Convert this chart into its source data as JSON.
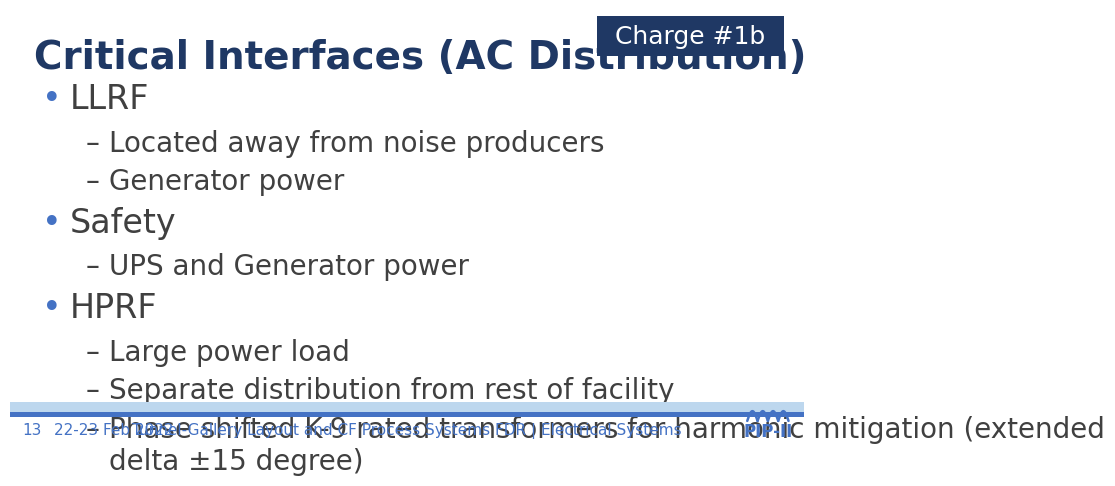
{
  "title": "Critical Interfaces (AC Distribution)",
  "title_color": "#1F3864",
  "title_fontsize": 28,
  "charge_label": "Charge #1b",
  "charge_bg_color": "#1F3864",
  "charge_text_color": "#FFFFFF",
  "charge_fontsize": 18,
  "bg_color": "#FFFFFF",
  "bullet_color": "#4472C4",
  "bullet_items": [
    {
      "level": 1,
      "text": "LLRF"
    },
    {
      "level": 2,
      "text": "Located away from noise producers"
    },
    {
      "level": 2,
      "text": "Generator power"
    },
    {
      "level": 1,
      "text": "Safety"
    },
    {
      "level": 2,
      "text": "UPS and Generator power"
    },
    {
      "level": 1,
      "text": "HPRF"
    },
    {
      "level": 2,
      "text": "Large power load"
    },
    {
      "level": 2,
      "text": "Separate distribution from rest of facility"
    },
    {
      "level": 2,
      "text": "Phase shifted K-9 rated transformers for harmonic mitigation (extended\ndelta ±15 degree)"
    }
  ],
  "bullet1_fontsize": 24,
  "bullet2_fontsize": 20,
  "footer_left1": "13",
  "footer_left2": "22-23 Feb 2022",
  "footer_center": "Tunnel-Gallery Layout and CF Process Systems FDR | Electrical Systems",
  "footer_color": "#4472C4",
  "footer_fontsize": 11,
  "footer_bar_color": "#4472C4",
  "footer_bar_light": "#BDD7EE",
  "text_color": "#404040"
}
